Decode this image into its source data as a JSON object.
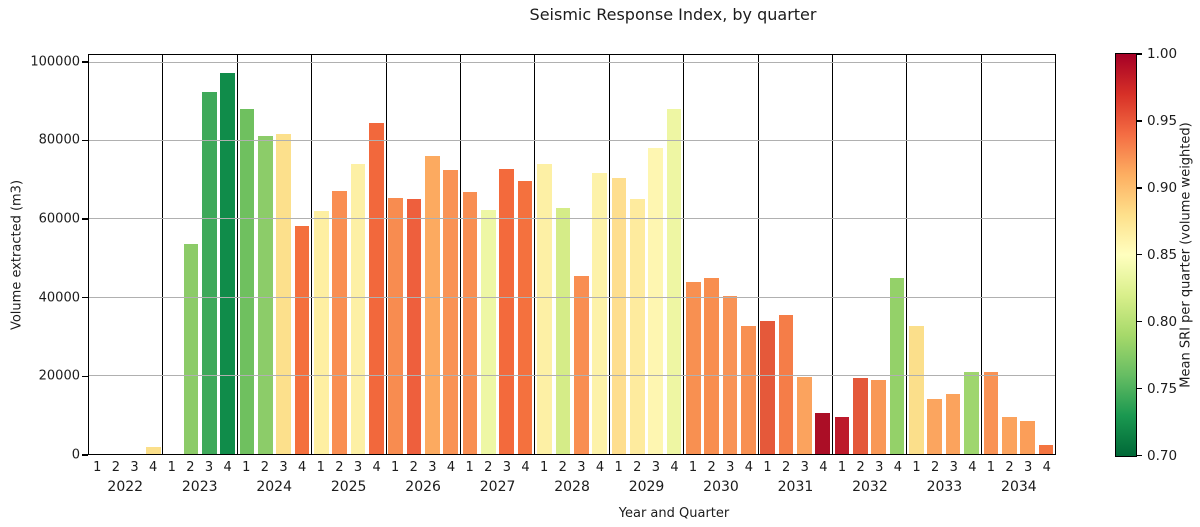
{
  "title": "Seismic Response Index, by quarter",
  "axes": {
    "ylabel": "Volume extracted (m3)",
    "xlabel": "Year and Quarter",
    "y_axis_max": 102000,
    "y_ticks": [
      {
        "label": "100000",
        "value": 100000
      },
      {
        "label": "80000",
        "value": 80000
      },
      {
        "label": "60000",
        "value": 60000
      },
      {
        "label": "40000",
        "value": 40000
      },
      {
        "label": "20000",
        "value": 20000
      },
      {
        "label": "0",
        "value": 0
      }
    ],
    "y_gridlines": [
      20000,
      40000,
      60000,
      80000,
      100000
    ],
    "grid_color": "#b0b0b0",
    "frame_color": "#000000"
  },
  "colorbar": {
    "label": "Mean SRI per quarter (volume weighted)",
    "min": 0.7,
    "max": 1.0,
    "ticks": [
      {
        "label": "1.00",
        "value": 1.0
      },
      {
        "label": "0.95",
        "value": 0.95
      },
      {
        "label": "0.90",
        "value": 0.9
      },
      {
        "label": "0.85",
        "value": 0.85
      },
      {
        "label": "0.80",
        "value": 0.8
      },
      {
        "label": "0.75",
        "value": 0.75
      },
      {
        "label": "0.70",
        "value": 0.7
      }
    ],
    "gradient_stops_top_to_bottom": [
      "#a50026",
      "#d73027",
      "#f46d43",
      "#fdae61",
      "#fee08b",
      "#ffffbf",
      "#d9ef8b",
      "#a6d96a",
      "#66bd63",
      "#1a9850",
      "#006837"
    ]
  },
  "chart_data": {
    "type": "bar",
    "title": "Seismic Response Index, by quarter",
    "xlabel": "Year and Quarter",
    "ylabel": "Volume extracted (m3)",
    "ylim": [
      0,
      102000
    ],
    "grid": true,
    "quarter_labels": [
      "1",
      "2",
      "3",
      "4"
    ],
    "color_encoding": "Mean SRI per quarter (volume weighted), colormap red-yellow-green reversed over [0.70, 1.00]",
    "years": [
      {
        "year": "2022",
        "values": [
          0,
          0,
          0,
          1900
        ],
        "sri_mean": [
          null,
          null,
          null,
          0.88
        ],
        "colors": [
          null,
          null,
          null,
          "#fbdf8a"
        ]
      },
      {
        "year": "2023",
        "values": [
          0,
          53700,
          92600,
          97300
        ],
        "sri_mean": [
          null,
          0.78,
          0.74,
          0.71
        ],
        "colors": [
          null,
          "#8ccb68",
          "#3fa95a",
          "#108c4a"
        ]
      },
      {
        "year": "2024",
        "values": [
          88200,
          81300,
          81900,
          58400
        ],
        "sri_mean": [
          0.765,
          0.78,
          0.88,
          0.94
        ],
        "colors": [
          "#6fc05f",
          "#8ccc69",
          "#fce08c",
          "#f4703d"
        ]
      },
      {
        "year": "2025",
        "values": [
          62200,
          67300,
          74100,
          84600
        ],
        "sri_mean": [
          0.865,
          0.925,
          0.865,
          0.945
        ],
        "colors": [
          "#feefa2",
          "#f98e52",
          "#fdf0a5",
          "#f2683c"
        ]
      },
      {
        "year": "2026",
        "values": [
          65500,
          65100,
          76300,
          72600
        ],
        "sri_mean": [
          0.925,
          0.95,
          0.905,
          0.92
        ],
        "colors": [
          "#f88c50",
          "#ee5f3d",
          "#fcaa60",
          "#f99355"
        ]
      },
      {
        "year": "2027",
        "values": [
          67100,
          62500,
          72900,
          69700
        ],
        "sri_mean": [
          0.925,
          0.84,
          0.945,
          0.94
        ],
        "colors": [
          "#f88e52",
          "#eef7a5",
          "#f36a3c",
          "#f4713e"
        ]
      },
      {
        "year": "2028",
        "values": [
          74200,
          63000,
          45400,
          71900
        ],
        "sri_mean": [
          0.865,
          0.82,
          0.925,
          0.86
        ],
        "colors": [
          "#fdf0a5",
          "#d5ec88",
          "#f98e52",
          "#fdf2a9"
        ]
      },
      {
        "year": "2029",
        "values": [
          70500,
          65300,
          78200,
          88200
        ],
        "sri_mean": [
          0.88,
          0.87,
          0.855,
          0.835
        ],
        "colors": [
          "#fede8e",
          "#feeb9e",
          "#fef6b1",
          "#eef6a3"
        ]
      },
      {
        "year": "2030",
        "values": [
          44100,
          45100,
          40400,
          32600
        ],
        "sri_mean": [
          0.925,
          0.925,
          0.92,
          0.925
        ],
        "colors": [
          "#f89051",
          "#f88e4f",
          "#f89356",
          "#f89052"
        ]
      },
      {
        "year": "2031",
        "values": [
          33900,
          35500,
          19600,
          10600
        ],
        "sri_mean": [
          0.955,
          0.93,
          0.91,
          1.0
        ],
        "colors": [
          "#e5593a",
          "#f57d48",
          "#fba35e",
          "#ab0e26"
        ]
      },
      {
        "year": "2032",
        "values": [
          9500,
          19400,
          19000,
          45100
        ],
        "sri_mean": [
          0.99,
          0.955,
          0.92,
          0.775
        ],
        "colors": [
          "#bd1a2b",
          "#e4583a",
          "#f99857",
          "#94d169"
        ]
      },
      {
        "year": "2033",
        "values": [
          32800,
          14100,
          15400,
          20900
        ],
        "sri_mean": [
          0.88,
          0.905,
          0.91,
          0.78
        ],
        "colors": [
          "#fbdf8b",
          "#fba55f",
          "#fba35d",
          "#9fd66e"
        ]
      },
      {
        "year": "2034",
        "values": [
          20900,
          9400,
          8400,
          2200
        ],
        "sri_mean": [
          0.92,
          0.91,
          0.915,
          0.94
        ],
        "colors": [
          "#f99254",
          "#fba35e",
          "#fb9e59",
          "#f4743f"
        ]
      }
    ]
  }
}
